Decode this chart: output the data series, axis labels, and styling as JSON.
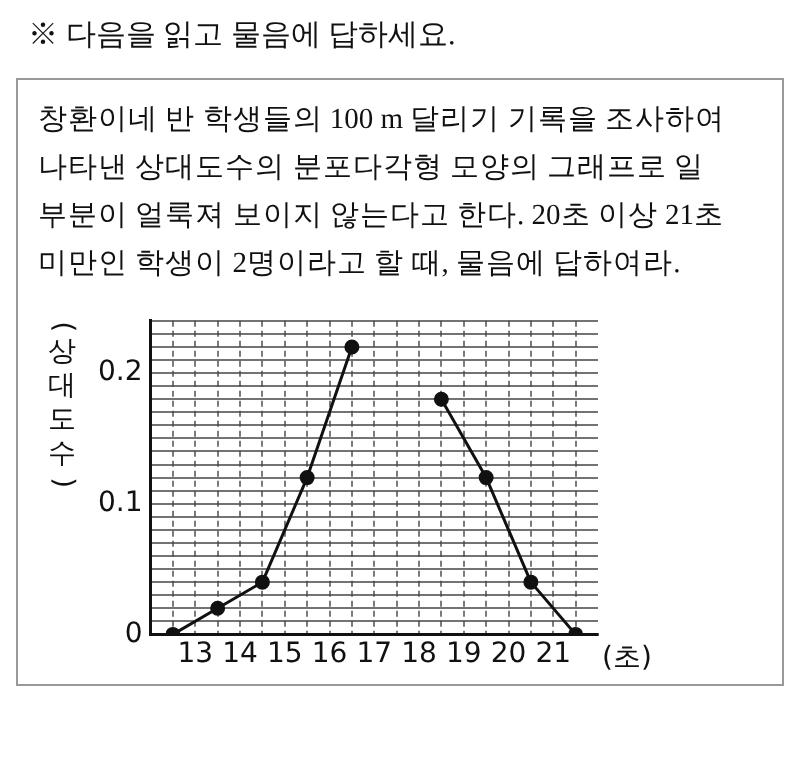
{
  "chart_data": {
    "type": "line",
    "title": "※ 다음을 읽고 물음에 답하세요.",
    "subtitle": "창환이네 반 학생들의 100 m 달리기 기록을 조사하여 나타낸 상대도수의 분포다각형 모양의 그래프로 일부분이 얼룩져 보이지 않는다고 한다. 20초 이상 21초 미만인 학생이 2명이라고 할 때, 물음에 답하여라.",
    "xlabel": "(초)",
    "ylabel": "(상대도수)",
    "x": [
      12.5,
      13.5,
      14.5,
      15.5,
      16.5,
      17.5,
      18.5,
      19.5,
      20.5,
      21.5
    ],
    "series": [
      {
        "color": "#111111",
        "values": [
          0,
          0.02,
          0.04,
          0.12,
          0.22,
          null,
          0.18,
          0.12,
          0.04,
          0
        ]
      }
    ],
    "xlim": [
      12,
      22
    ],
    "ylim": [
      0,
      0.24
    ],
    "xticks": [
      {
        "value": 12.5,
        "label": null
      },
      13,
      {
        "value": 13.5,
        "label": null
      },
      14,
      {
        "value": 14.5,
        "label": null
      },
      15,
      {
        "value": 15.5,
        "label": null
      },
      16,
      {
        "value": 16.5,
        "label": null
      },
      17,
      {
        "value": 17.5,
        "label": null
      },
      18,
      {
        "value": 18.5,
        "label": null
      },
      19,
      {
        "value": 19.5,
        "label": null
      },
      20,
      {
        "value": 20.5,
        "label": null
      },
      21,
      {
        "value": 21.5,
        "label": null
      }
    ],
    "yticks": [
      0,
      {
        "value": 0.01,
        "label": null
      },
      {
        "value": 0.02,
        "label": null
      },
      {
        "value": 0.03,
        "label": null
      },
      {
        "value": 0.04,
        "label": null
      },
      {
        "value": 0.05,
        "label": null
      },
      {
        "value": 0.06,
        "label": null
      },
      {
        "value": 0.07,
        "label": null
      },
      {
        "value": 0.08,
        "label": null
      },
      {
        "value": 0.09,
        "label": null
      },
      0.1,
      {
        "value": 0.11,
        "label": null
      },
      {
        "value": 0.12,
        "label": null
      },
      {
        "value": 0.13,
        "label": null
      },
      {
        "value": 0.14,
        "label": null
      },
      {
        "value": 0.15,
        "label": null
      },
      {
        "value": 0.16,
        "label": null
      },
      {
        "value": 0.17,
        "label": null
      },
      {
        "value": 0.18,
        "label": null
      },
      {
        "value": 0.19,
        "label": null
      },
      0.2,
      {
        "value": 0.21,
        "label": null
      },
      {
        "value": 0.22,
        "label": null
      },
      {
        "value": 0.23,
        "label": null
      },
      {
        "value": 0.24,
        "label": null
      }
    ],
    "grid": true,
    "legend": false,
    "marker": "circle",
    "line_style": "solid"
  }
}
